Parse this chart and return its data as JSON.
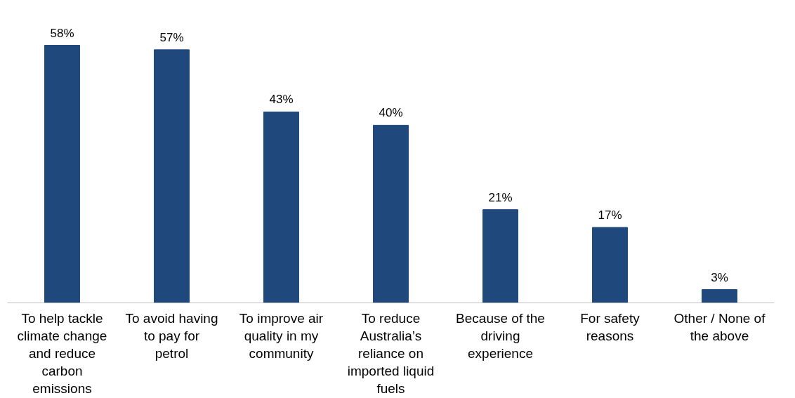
{
  "chart_data": {
    "type": "bar",
    "categories": [
      "To help tackle climate change and reduce carbon emissions",
      "To avoid having to pay for petrol",
      "To improve air quality in my community",
      "To reduce Australia’s reliance on imported liquid fuels",
      "Because of the driving experience",
      "For safety reasons",
      "Other / None of the above"
    ],
    "values": [
      58,
      57,
      43,
      40,
      21,
      17,
      3
    ],
    "value_labels": [
      "58%",
      "57%",
      "43%",
      "40%",
      "21%",
      "17%",
      "3%"
    ],
    "color": "#1f497d"
  }
}
